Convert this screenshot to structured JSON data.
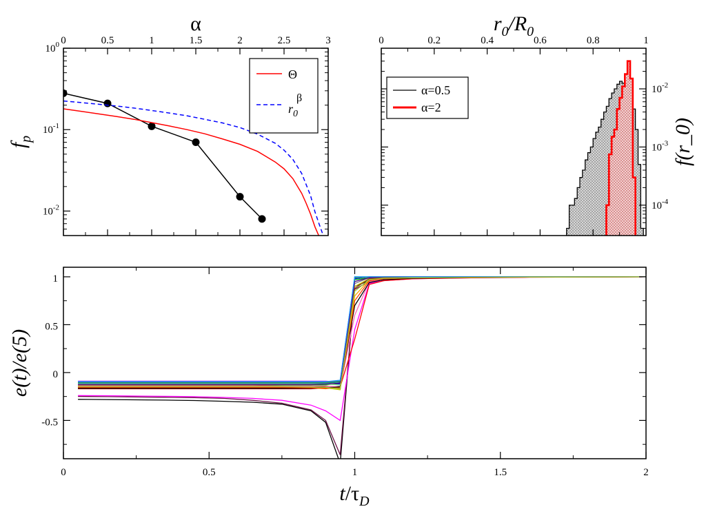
{
  "chart_data": [
    {
      "id": "panel-a",
      "type": "line",
      "xlabel": "α",
      "ylabel": "f_p",
      "xscale": "linear",
      "yscale": "log",
      "xlim": [
        0,
        3
      ],
      "ylim": [
        0.005,
        1
      ],
      "x_ticks": [
        "0",
        "0.5",
        "1",
        "1.5",
        "2",
        "2.5",
        "3"
      ],
      "x_tick_values": [
        0,
        0.5,
        1,
        1.5,
        2,
        2.5,
        3
      ],
      "y_ticks": [
        {
          "base": "10",
          "exp": "0",
          "value": 1
        },
        {
          "base": "10",
          "exp": "-1",
          "value": 0.1
        },
        {
          "base": "10",
          "exp": "-2",
          "value": 0.01
        }
      ],
      "legend_position": "top-right",
      "series": [
        {
          "kind": "markers",
          "color": "#000000",
          "x": [
            0,
            0.5,
            1,
            1.5,
            2,
            2.25
          ],
          "y": [
            0.28,
            0.21,
            0.11,
            0.07,
            0.015,
            0.008
          ]
        },
        {
          "name": "Θ",
          "kind": "solid",
          "color": "#ff0000",
          "x": [
            0,
            0.2,
            0.4,
            0.6,
            0.8,
            1.0,
            1.2,
            1.4,
            1.6,
            1.8,
            2.0,
            2.2,
            2.4,
            2.5,
            2.6,
            2.7,
            2.75,
            2.8,
            2.85,
            2.9
          ],
          "y": [
            0.18,
            0.168,
            0.156,
            0.145,
            0.134,
            0.122,
            0.111,
            0.1,
            0.089,
            0.077,
            0.066,
            0.054,
            0.04,
            0.033,
            0.025,
            0.0165,
            0.0125,
            0.0092,
            0.0064,
            0.0048
          ]
        },
        {
          "name_parts": [
            "r",
            "0",
            "β"
          ],
          "kind": "dashed",
          "color": "#0000ff",
          "x": [
            0,
            0.2,
            0.4,
            0.6,
            0.8,
            1.0,
            1.2,
            1.4,
            1.6,
            1.8,
            2.0,
            2.2,
            2.4,
            2.5,
            2.6,
            2.7,
            2.8,
            2.85,
            2.9,
            2.95
          ],
          "y": [
            0.225,
            0.215,
            0.205,
            0.195,
            0.184,
            0.172,
            0.16,
            0.148,
            0.134,
            0.121,
            0.106,
            0.088,
            0.068,
            0.056,
            0.043,
            0.029,
            0.0155,
            0.0098,
            0.0068,
            0.0048
          ]
        }
      ]
    },
    {
      "id": "panel-b",
      "type": "histogram",
      "xlabel_parts": [
        "r",
        "0",
        "/R",
        "0"
      ],
      "ylabel": "f(r_0)",
      "xscale": "linear",
      "yscale": "log",
      "xlim": [
        0,
        1
      ],
      "ylim": [
        3e-05,
        0.05
      ],
      "x_ticks": [
        "0",
        "0.2",
        "0.4",
        "0.6",
        "0.8",
        "1"
      ],
      "x_tick_values": [
        0,
        0.2,
        0.4,
        0.6,
        0.8,
        1
      ],
      "y_ticks": [
        {
          "base": "10",
          "exp": "-2",
          "value": 0.01
        },
        {
          "base": "10",
          "exp": "-3",
          "value": 0.001
        },
        {
          "base": "10",
          "exp": "-4",
          "value": 0.0001
        }
      ],
      "legend_position": "top-left",
      "bin_width": 0.01,
      "series": [
        {
          "name": "α=0.5",
          "color": "#000000",
          "fill": "#c8c8c8",
          "bin_starts": [
            0.7,
            0.71,
            0.72,
            0.73,
            0.74,
            0.75,
            0.76,
            0.77,
            0.78,
            0.79,
            0.8,
            0.81,
            0.82,
            0.83,
            0.84,
            0.85,
            0.86,
            0.87,
            0.88,
            0.89,
            0.9,
            0.91,
            0.92,
            0.93,
            0.94,
            0.95,
            0.96,
            0.97,
            0.98
          ],
          "values": [
            4e-05,
            0.0001,
            0.0001,
            0.00013,
            0.0002,
            0.0003,
            0.0004,
            0.0006,
            0.0008,
            0.001,
            0.0014,
            0.0018,
            0.0022,
            0.003,
            0.004,
            0.005,
            0.0068,
            0.0085,
            0.01,
            0.012,
            0.0135,
            0.0125,
            0.012,
            0.011,
            0.008,
            0.0045,
            0.002,
            0.0005,
            4e-05
          ]
        },
        {
          "name": "α=2",
          "color": "#ff0000",
          "fill": "#f2caca",
          "bin_starts": [
            0.85,
            0.86,
            0.87,
            0.88,
            0.89,
            0.9,
            0.91,
            0.92,
            0.93,
            0.94,
            0.95
          ],
          "values": [
            0.0001,
            0.00075,
            0.0015,
            0.002,
            0.0045,
            0.007,
            0.011,
            0.018,
            0.03,
            0.015,
            0.0003
          ]
        }
      ]
    },
    {
      "id": "panel-c",
      "type": "line",
      "xlabel_parts": [
        "t",
        "/τ",
        "D"
      ],
      "ylabel": "e(t)/e(5)",
      "xscale": "linear",
      "yscale": "linear",
      "xlim": [
        0,
        2
      ],
      "ylim": [
        -0.9,
        1.1
      ],
      "x_ticks": [
        "0",
        "0.5",
        "1",
        "1.5",
        "2"
      ],
      "x_tick_values": [
        0,
        0.5,
        1,
        1.5,
        2
      ],
      "y_ticks": [
        "-0.5",
        "0",
        "0.5",
        "1"
      ],
      "y_tick_values": [
        -0.5,
        0,
        0.5,
        1
      ],
      "x": [
        0.05,
        0.15,
        0.25,
        0.35,
        0.45,
        0.55,
        0.65,
        0.75,
        0.85,
        0.9,
        0.95,
        1.0,
        1.05,
        1.1,
        1.2,
        1.4,
        1.6,
        2.0
      ],
      "series": [
        {
          "color": "#000000",
          "values": [
            -0.28,
            -0.282,
            -0.285,
            -0.288,
            -0.292,
            -0.3,
            -0.31,
            -0.33,
            -0.4,
            -0.52,
            -0.95,
            0.9,
            0.96,
            0.975,
            0.985,
            0.993,
            0.997,
            1.0
          ]
        },
        {
          "color": "#6a1045",
          "values": [
            -0.25,
            -0.252,
            -0.255,
            -0.258,
            -0.262,
            -0.27,
            -0.29,
            -0.32,
            -0.39,
            -0.5,
            -0.86,
            0.87,
            0.95,
            0.97,
            0.982,
            0.992,
            0.997,
            1.0
          ]
        },
        {
          "color": "#ff00ff",
          "values": [
            -0.24,
            -0.242,
            -0.245,
            -0.248,
            -0.252,
            -0.26,
            -0.27,
            -0.29,
            -0.34,
            -0.4,
            -0.5,
            0.45,
            0.93,
            0.96,
            0.98,
            0.99,
            0.996,
            1.0
          ]
        },
        {
          "color": "#ff0000",
          "values": [
            -0.17,
            -0.17,
            -0.17,
            -0.17,
            -0.17,
            -0.17,
            -0.17,
            -0.17,
            -0.17,
            -0.16,
            -0.15,
            0.35,
            0.92,
            0.96,
            0.98,
            0.99,
            0.996,
            1.0
          ]
        },
        {
          "color": "#0000ff",
          "values": [
            -0.12,
            -0.12,
            -0.12,
            -0.12,
            -0.12,
            -0.12,
            -0.12,
            -0.12,
            -0.12,
            -0.12,
            -0.12,
            0.98,
            1.0,
            1.0,
            1.0,
            1.0,
            1.0,
            1.0
          ]
        },
        {
          "color": "#00c000",
          "values": [
            -0.13,
            -0.13,
            -0.13,
            -0.13,
            -0.13,
            -0.13,
            -0.13,
            -0.13,
            -0.13,
            -0.13,
            -0.11,
            0.97,
            0.99,
            1.0,
            1.0,
            1.0,
            1.0,
            1.0
          ]
        },
        {
          "color": "#ffa500",
          "values": [
            -0.15,
            -0.15,
            -0.15,
            -0.15,
            -0.15,
            -0.15,
            -0.15,
            -0.15,
            -0.16,
            -0.17,
            -0.15,
            0.8,
            0.97,
            0.985,
            0.99,
            0.995,
            0.998,
            1.0
          ]
        },
        {
          "color": "#00cccc",
          "values": [
            -0.1,
            -0.1,
            -0.1,
            -0.1,
            -0.1,
            -0.1,
            -0.1,
            -0.1,
            -0.1,
            -0.1,
            -0.09,
            1.0,
            1.0,
            1.0,
            1.0,
            1.0,
            1.0,
            1.0
          ]
        },
        {
          "color": "#a020f0",
          "values": [
            -0.09,
            -0.09,
            -0.09,
            -0.09,
            -0.09,
            -0.09,
            -0.09,
            -0.09,
            -0.09,
            -0.09,
            -0.1,
            0.99,
            1.0,
            1.0,
            1.0,
            1.0,
            1.0,
            1.0
          ]
        },
        {
          "color": "#c8c800",
          "values": [
            -0.14,
            -0.14,
            -0.14,
            -0.14,
            -0.14,
            -0.14,
            -0.14,
            -0.14,
            -0.15,
            -0.16,
            -0.18,
            0.9,
            0.98,
            0.99,
            0.995,
            0.998,
            0.999,
            1.0
          ]
        },
        {
          "color": "#808080",
          "values": [
            -0.16,
            -0.16,
            -0.16,
            -0.16,
            -0.16,
            -0.16,
            -0.16,
            -0.16,
            -0.16,
            -0.16,
            -0.14,
            0.93,
            0.99,
            0.995,
            1.0,
            1.0,
            1.0,
            1.0
          ]
        },
        {
          "color": "#008b8b",
          "values": [
            -0.11,
            -0.11,
            -0.11,
            -0.11,
            -0.11,
            -0.11,
            -0.11,
            -0.11,
            -0.11,
            -0.11,
            -0.1,
            0.99,
            1.0,
            1.0,
            1.0,
            1.0,
            1.0,
            1.0
          ]
        },
        {
          "color": "#8b4513",
          "values": [
            -0.13,
            -0.13,
            -0.13,
            -0.13,
            -0.13,
            -0.13,
            -0.13,
            -0.14,
            -0.14,
            -0.15,
            -0.17,
            0.88,
            0.98,
            0.99,
            0.995,
            0.998,
            0.999,
            1.0
          ]
        },
        {
          "color": "#90ee90",
          "values": [
            -0.12,
            -0.12,
            -0.12,
            -0.12,
            -0.12,
            -0.12,
            -0.12,
            -0.12,
            -0.12,
            -0.12,
            -0.13,
            0.99,
            1.0,
            1.0,
            1.0,
            1.0,
            1.0,
            1.0
          ]
        },
        {
          "color": "#ff69b4",
          "values": [
            -0.14,
            -0.14,
            -0.14,
            -0.14,
            -0.14,
            -0.14,
            -0.14,
            -0.14,
            -0.14,
            -0.14,
            -0.15,
            0.6,
            0.95,
            0.975,
            0.99,
            0.995,
            0.998,
            1.0
          ]
        },
        {
          "color": "#000000",
          "values": [
            -0.165,
            -0.165,
            -0.165,
            -0.165,
            -0.165,
            -0.165,
            -0.165,
            -0.165,
            -0.165,
            -0.16,
            -0.15,
            0.7,
            0.94,
            0.97,
            0.985,
            0.993,
            0.997,
            1.0
          ]
        },
        {
          "color": "#2e8b57",
          "values": [
            -0.105,
            -0.105,
            -0.105,
            -0.105,
            -0.105,
            -0.105,
            -0.105,
            -0.105,
            -0.105,
            -0.105,
            -0.09,
            0.99,
            1.0,
            1.0,
            1.0,
            1.0,
            1.0,
            1.0
          ]
        },
        {
          "color": "#4b0082",
          "values": [
            -0.125,
            -0.125,
            -0.125,
            -0.125,
            -0.125,
            -0.125,
            -0.125,
            -0.125,
            -0.125,
            -0.12,
            -0.11,
            0.95,
            0.99,
            1.0,
            1.0,
            1.0,
            1.0,
            1.0
          ]
        },
        {
          "color": "#ff4500",
          "values": [
            -0.155,
            -0.155,
            -0.155,
            -0.155,
            -0.155,
            -0.155,
            -0.155,
            -0.155,
            -0.16,
            -0.165,
            -0.16,
            0.75,
            0.96,
            0.98,
            0.99,
            0.995,
            0.998,
            1.0
          ]
        },
        {
          "color": "#1e90ff",
          "values": [
            -0.095,
            -0.095,
            -0.095,
            -0.095,
            -0.095,
            -0.095,
            -0.095,
            -0.095,
            -0.095,
            -0.095,
            -0.08,
            1.0,
            1.0,
            1.0,
            1.0,
            1.0,
            1.0,
            1.0
          ]
        },
        {
          "color": "#9acd32",
          "values": [
            -0.145,
            -0.145,
            -0.145,
            -0.145,
            -0.145,
            -0.145,
            -0.145,
            -0.145,
            -0.15,
            -0.155,
            -0.17,
            0.85,
            0.97,
            0.985,
            0.99,
            0.995,
            0.998,
            1.0
          ]
        }
      ]
    }
  ]
}
